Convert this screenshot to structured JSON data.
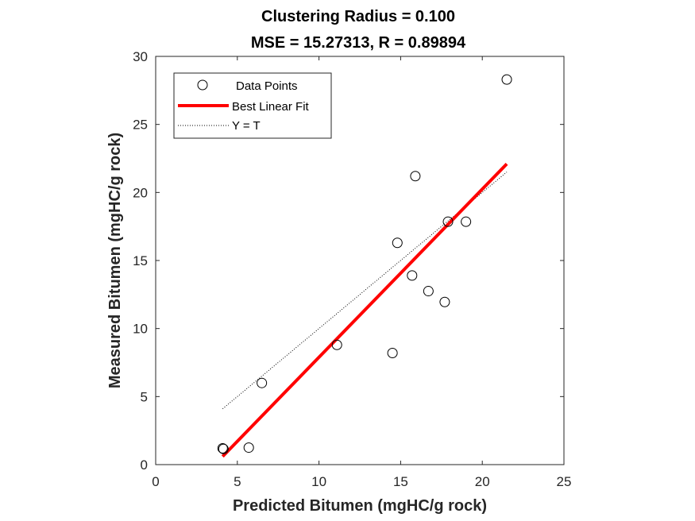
{
  "chart_data": {
    "type": "scatter",
    "title": [
      "Clustering Radius = 0.100",
      "MSE = 15.27313, R = 0.89894"
    ],
    "xlabel": "Predicted Bitumen (mgHC/g rock)",
    "ylabel": "Measured Bitumen (mgHC/g rock)",
    "xlim": [
      0,
      25
    ],
    "ylim": [
      0,
      30
    ],
    "xticks": [
      0,
      5,
      10,
      15,
      20,
      25
    ],
    "yticks": [
      0,
      5,
      10,
      15,
      20,
      25,
      30
    ],
    "grid": false,
    "legend_position": "top-left",
    "series": [
      {
        "name": "Data Points",
        "kind": "markers",
        "marker": "open-circle",
        "color": "#000000",
        "points": [
          {
            "x": 4.1,
            "y": 1.2
          },
          {
            "x": 4.15,
            "y": 1.15
          },
          {
            "x": 5.7,
            "y": 1.25
          },
          {
            "x": 6.5,
            "y": 6.0
          },
          {
            "x": 11.1,
            "y": 8.8
          },
          {
            "x": 14.5,
            "y": 8.2
          },
          {
            "x": 14.8,
            "y": 16.3
          },
          {
            "x": 15.7,
            "y": 13.9
          },
          {
            "x": 15.9,
            "y": 21.2
          },
          {
            "x": 16.7,
            "y": 12.75
          },
          {
            "x": 17.7,
            "y": 11.95
          },
          {
            "x": 17.9,
            "y": 17.85
          },
          {
            "x": 19.0,
            "y": 17.85
          },
          {
            "x": 21.5,
            "y": 28.3
          }
        ]
      },
      {
        "name": "Best Linear Fit",
        "kind": "line",
        "color": "#ff0000",
        "points": [
          {
            "x": 4.1,
            "y": 0.6
          },
          {
            "x": 21.5,
            "y": 22.1
          }
        ]
      },
      {
        "name": "Y = T",
        "kind": "line",
        "style": "dotted",
        "color": "#000000",
        "points": [
          {
            "x": 4.1,
            "y": 4.1
          },
          {
            "x": 21.5,
            "y": 21.5
          }
        ]
      }
    ]
  }
}
